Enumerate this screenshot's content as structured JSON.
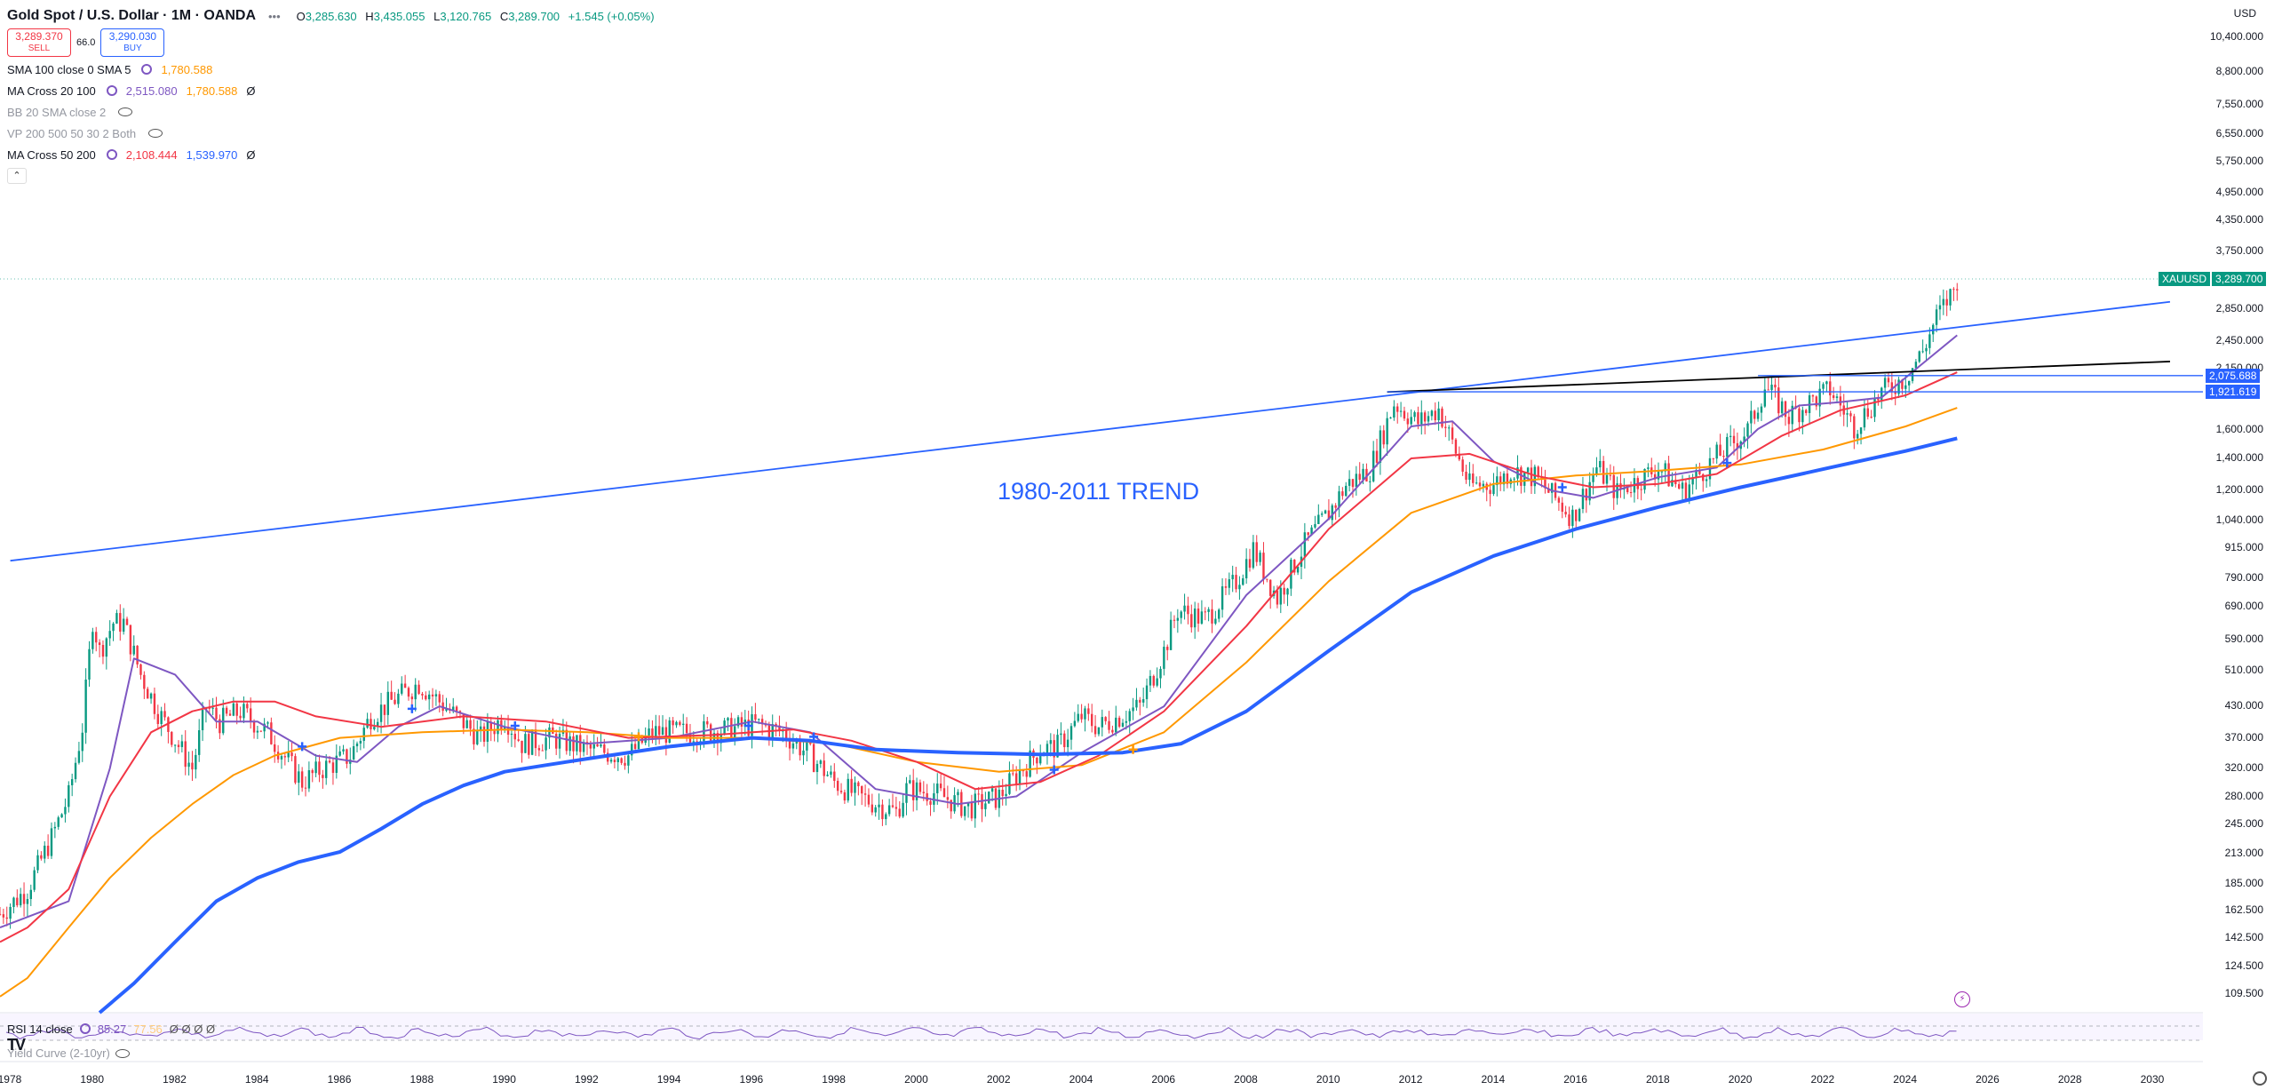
{
  "header": {
    "symbol_title": "Gold Spot / U.S. Dollar · 1M · OANDA",
    "ohlc": [
      {
        "k": "O",
        "v": "3,285.630"
      },
      {
        "k": "H",
        "v": "3,435.055"
      },
      {
        "k": "L",
        "v": "3,120.765"
      },
      {
        "k": "C",
        "v": "3,289.700"
      }
    ],
    "change": "+1.545 (+0.05%)",
    "sell_price": "3,289.370",
    "sell_label": "SELL",
    "spread": "66.0",
    "buy_price": "3,290.030",
    "buy_label": "BUY"
  },
  "indicators": [
    {
      "name": "SMA 100 close 0 SMA 5",
      "values": [
        {
          "v": "1,780.588",
          "color": "#ff9800"
        }
      ],
      "dim": false
    },
    {
      "name": "MA Cross 20 100",
      "values": [
        {
          "v": "2,515.080",
          "color": "#7e57c2"
        },
        {
          "v": "1,780.588",
          "color": "#ff9800"
        }
      ],
      "suffix": "Ø",
      "dim": false
    },
    {
      "name": "BB 20 SMA close 2",
      "values": [],
      "dim": true
    },
    {
      "name": "VP 200 500 50 30 2 Both",
      "values": [],
      "dim": true
    },
    {
      "name": "MA Cross 50 200",
      "values": [
        {
          "v": "2,108.444",
          "color": "#f23645"
        },
        {
          "v": "1,539.970",
          "color": "#2962ff"
        }
      ],
      "suffix": "Ø",
      "dim": false
    }
  ],
  "collapse_glyph": "⌃",
  "price_axis": {
    "currency": "USD",
    "ticks": [
      "10,400.000",
      "8,800.000",
      "7,550.000",
      "6,550.000",
      "5,750.000",
      "4,950.000",
      "4,350.000",
      "3,750.000",
      "2,850.000",
      "2,450.000",
      "2,150.000",
      "1,600.000",
      "1,400.000",
      "1,200.000",
      "1,040.000",
      "915.000",
      "790.000",
      "690.000",
      "590.000",
      "510.000",
      "430.000",
      "370.000",
      "320.000",
      "280.000",
      "245.000",
      "213.000",
      "185.000",
      "162.500",
      "142.500",
      "124.500",
      "109.500"
    ]
  },
  "price_tags": [
    {
      "label": "XAUUSD",
      "value": "3,289.700",
      "color": "#089981"
    },
    {
      "value": "2,075.688",
      "color": "#2962ff"
    },
    {
      "value": "1,921.619",
      "color": "#2962ff"
    }
  ],
  "time_axis": [
    "1978",
    "1980",
    "1982",
    "1984",
    "1986",
    "1988",
    "1990",
    "1992",
    "1994",
    "1996",
    "1998",
    "2000",
    "2002",
    "2004",
    "2006",
    "2008",
    "2010",
    "2012",
    "2014",
    "2016",
    "2018",
    "2020",
    "2022",
    "2024",
    "2026",
    "2028",
    "2030"
  ],
  "annotation": "1980-2011 TREND",
  "rsi": {
    "name": "RSI 14 close",
    "value": "85.27",
    "value2": "77.56",
    "suffix": "Ø Ø Ø Ø"
  },
  "yield_curve": {
    "name": "Yield Curve (2-10yr)"
  },
  "logo": "TV",
  "chart_data": {
    "type": "line",
    "title": "Gold Spot / U.S. Dollar · 1M · OANDA",
    "scale": "log",
    "x_range": [
      "1977-10",
      "2031-01"
    ],
    "y_range": [
      100,
      11500
    ],
    "price_series": {
      "name": "XAUUSD",
      "x": [
        "1977-10",
        "1978-06",
        "1979-01",
        "1979-06",
        "1979-10",
        "1980-01",
        "1980-03",
        "1980-07",
        "1980-10",
        "1981-03",
        "1981-08",
        "1982-06",
        "1982-10",
        "1983-02",
        "1983-08",
        "1984-04",
        "1985-02",
        "1985-08",
        "1986-04",
        "1986-10",
        "1987-04",
        "1987-12",
        "1988-06",
        "1989-06",
        "1990-01",
        "1990-06",
        "1991-03",
        "1992-01",
        "1993-01",
        "1993-08",
        "1994-06",
        "1995-06",
        "1996-02",
        "1996-10",
        "1997-06",
        "1998-01",
        "1998-08",
        "1999-07",
        "1999-10",
        "2000-06",
        "2001-04",
        "2002-01",
        "2002-06",
        "2003-01",
        "2003-06",
        "2004-01",
        "2004-06",
        "2005-06",
        "2006-01",
        "2006-05",
        "2007-01",
        "2007-10",
        "2008-03",
        "2008-10",
        "2009-06",
        "2010-01",
        "2010-06",
        "2011-01",
        "2011-08",
        "2012-03",
        "2012-09",
        "2013-06",
        "2014-01",
        "2014-06",
        "2015-01",
        "2015-12",
        "2016-07",
        "2017-01",
        "2018-01",
        "2018-08",
        "2019-06",
        "2020-03",
        "2020-08",
        "2021-03",
        "2021-08",
        "2022-03",
        "2022-10",
        "2023-06",
        "2024-01",
        "2024-06",
        "2024-10",
        "2025-03",
        "2025-04"
      ],
      "close": [
        160,
        180,
        230,
        280,
        390,
        650,
        560,
        640,
        640,
        500,
        420,
        320,
        430,
        400,
        420,
        380,
        300,
        320,
        340,
        410,
        440,
        480,
        440,
        370,
        410,
        360,
        370,
        350,
        340,
        380,
        380,
        385,
        395,
        380,
        340,
        300,
        280,
        260,
        290,
        285,
        265,
        280,
        310,
        350,
        355,
        410,
        390,
        430,
        560,
        680,
        650,
        780,
        910,
        720,
        930,
        1080,
        1230,
        1330,
        1820,
        1660,
        1770,
        1230,
        1240,
        1320,
        1280,
        1060,
        1340,
        1190,
        1340,
        1200,
        1410,
        1600,
        1970,
        1710,
        1810,
        1940,
        1630,
        1920,
        2060,
        2330,
        2740,
        3120,
        3289.7
      ]
    },
    "series": [
      {
        "name": "MA Cross 20 100",
        "color": "#7e57c2",
        "x": [
          "1977-10",
          "1979-06",
          "1980-06",
          "1981-01",
          "1982-01",
          "1983-01",
          "1984-01",
          "1985-06",
          "1986-06",
          "1987-06",
          "1988-06",
          "1990-01",
          "1992-01",
          "1994-01",
          "1996-01",
          "1997-06",
          "1999-01",
          "2001-01",
          "2002-06",
          "2004-01",
          "2006-01",
          "2008-01",
          "2010-01",
          "2012-01",
          "2013-01",
          "2014-01",
          "2015-06",
          "2016-06",
          "2018-01",
          "2019-06",
          "2020-06",
          "2021-06",
          "2022-06",
          "2023-06",
          "2024-06",
          "2025-04"
        ],
        "values": [
          150,
          170,
          320,
          540,
          500,
          400,
          400,
          340,
          330,
          390,
          430,
          390,
          360,
          370,
          400,
          380,
          290,
          270,
          280,
          345,
          430,
          730,
          1050,
          1630,
          1670,
          1380,
          1200,
          1160,
          1280,
          1340,
          1610,
          1800,
          1830,
          1870,
          2200,
          2515.08
        ]
      },
      {
        "name": "SMA 100 / MA Cross 20 100 (slow)",
        "color": "#ff9800",
        "x": [
          "1977-10",
          "1978-06",
          "1979-06",
          "1980-06",
          "1981-06",
          "1982-06",
          "1983-06",
          "1984-06",
          "1986-01",
          "1988-01",
          "1990-01",
          "1992-01",
          "1994-01",
          "1996-01",
          "1998-01",
          "2000-01",
          "2002-01",
          "2004-01",
          "2006-01",
          "2008-01",
          "2010-01",
          "2012-01",
          "2014-01",
          "2016-01",
          "2018-01",
          "2020-01",
          "2022-01",
          "2024-01",
          "2025-04"
        ],
        "values": [
          108,
          118,
          150,
          190,
          230,
          270,
          310,
          340,
          370,
          380,
          385,
          380,
          370,
          370,
          360,
          330,
          315,
          325,
          380,
          530,
          780,
          1080,
          1240,
          1290,
          1320,
          1360,
          1460,
          1630,
          1780.588
        ]
      },
      {
        "name": "MA Cross 50 200 (fast)",
        "color": "#f23645",
        "x": [
          "1977-10",
          "1978-06",
          "1979-06",
          "1980-06",
          "1981-06",
          "1982-06",
          "1983-06",
          "1984-06",
          "1985-06",
          "1987-01",
          "1989-01",
          "1991-01",
          "1993-01",
          "1995-01",
          "1997-01",
          "1998-06",
          "2000-01",
          "2001-06",
          "2003-01",
          "2004-06",
          "2006-01",
          "2008-01",
          "2010-01",
          "2012-01",
          "2013-06",
          "2015-01",
          "2016-06",
          "2018-01",
          "2019-06",
          "2021-01",
          "2022-06",
          "2024-01",
          "2025-04"
        ],
        "values": [
          140,
          150,
          180,
          280,
          380,
          420,
          440,
          440,
          410,
          390,
          410,
          400,
          370,
          375,
          385,
          365,
          330,
          290,
          300,
          340,
          420,
          630,
          1000,
          1400,
          1430,
          1290,
          1220,
          1240,
          1300,
          1560,
          1760,
          1890,
          2108.444
        ]
      },
      {
        "name": "MA Cross 50 200 (slow)",
        "color": "#2962ff",
        "x": [
          "1980-03",
          "1981-01",
          "1982-01",
          "1983-01",
          "1984-01",
          "1985-01",
          "1986-01",
          "1987-01",
          "1988-01",
          "1989-01",
          "1990-01",
          "1991-01",
          "1992-01",
          "1994-01",
          "1996-01",
          "1997-06",
          "1999-01",
          "2001-01",
          "2003-01",
          "2005-01",
          "2006-06",
          "2008-01",
          "2010-01",
          "2012-01",
          "2014-01",
          "2016-01",
          "2018-01",
          "2020-01",
          "2022-01",
          "2024-01",
          "2025-04"
        ],
        "values": [
          100,
          115,
          140,
          170,
          190,
          205,
          215,
          240,
          270,
          295,
          315,
          325,
          335,
          355,
          370,
          365,
          350,
          345,
          342,
          345,
          360,
          420,
          560,
          740,
          880,
          1000,
          1110,
          1220,
          1330,
          1450,
          1539.97
        ]
      }
    ],
    "trendlines": [
      {
        "name": "1980-2011 TREND",
        "color": "#2962ff",
        "x": [
          "1978-01",
          "2030-06"
        ],
        "values": [
          860,
          2950
        ]
      },
      {
        "name": "black-line",
        "color": "#000000",
        "x": [
          "2011-06",
          "2030-06"
        ],
        "values": [
          1920,
          2220
        ]
      }
    ],
    "hlines": [
      {
        "value": 2075.688,
        "color": "#2962ff",
        "x_from": "2020-06"
      },
      {
        "value": 1921.619,
        "color": "#2962ff",
        "x_from": "2011-06"
      }
    ],
    "rsi": {
      "name": "RSI 14 close",
      "value": 85.27
    },
    "xlabel": "",
    "ylabel": ""
  }
}
